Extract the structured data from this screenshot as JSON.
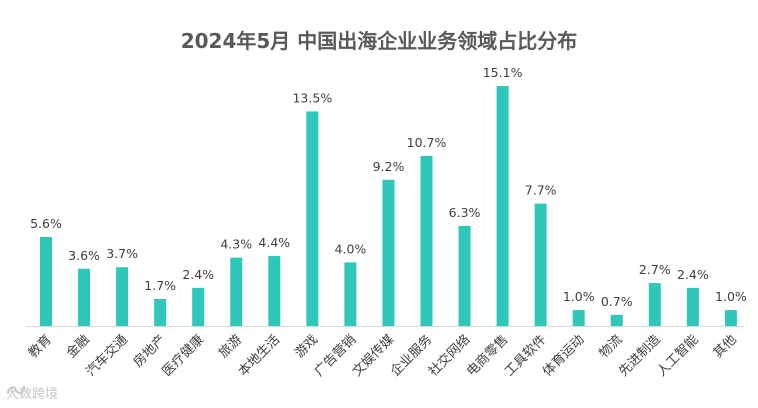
{
  "chart_data": {
    "type": "bar",
    "title": "2024年5月 中国出海企业业务领域占比分布",
    "categories": [
      "教育",
      "金融",
      "汽车交通",
      "房地产",
      "医疗健康",
      "旅游",
      "本地生活",
      "游戏",
      "广告营销",
      "文娱传媒",
      "企业服务",
      "社交网络",
      "电商零售",
      "工具软件",
      "体育运动",
      "物流",
      "先进制造",
      "人工智能",
      "其他"
    ],
    "values": [
      5.6,
      3.6,
      3.7,
      1.7,
      2.4,
      4.3,
      4.4,
      13.5,
      4.0,
      9.2,
      10.7,
      6.3,
      15.1,
      7.7,
      1.0,
      0.7,
      2.7,
      2.4,
      1.0
    ],
    "value_labels": [
      "5.6%",
      "3.6%",
      "3.7%",
      "1.7%",
      "2.4%",
      "4.3%",
      "4.4%",
      "13.5%",
      "4.0%",
      "9.2%",
      "10.7%",
      "6.3%",
      "15.1%",
      "7.7%",
      "1.0%",
      "0.7%",
      "2.7%",
      "2.4%",
      "1.0%"
    ],
    "unit": "%",
    "xlabel": "",
    "ylabel": "",
    "ylim": [
      0,
      16
    ],
    "grid": false,
    "legend": "none",
    "bar_color": "#2ec7b9"
  },
  "watermark": {
    "text": "大数跨境"
  }
}
